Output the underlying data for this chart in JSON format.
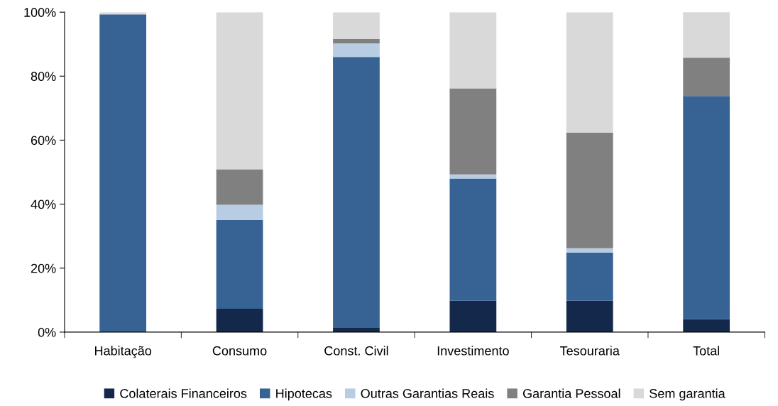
{
  "chart_data": {
    "type": "bar",
    "stacked": true,
    "categories": [
      "Habitação",
      "Consumo",
      "Const. Civil",
      "Investimento",
      "Tesouraria",
      "Total"
    ],
    "series": [
      {
        "name": "Colaterais Financeiros",
        "color": "#13284a",
        "values": [
          0,
          7.3,
          1.3,
          9.8,
          9.8,
          4.0
        ]
      },
      {
        "name": "Hipotecas",
        "color": "#366294",
        "values": [
          99.3,
          27.8,
          84.7,
          38.2,
          15.1,
          69.8
        ]
      },
      {
        "name": "Outras Garantias Reais",
        "color": "#b8cce4",
        "values": [
          0,
          4.7,
          4.2,
          1.3,
          1.3,
          null
        ]
      },
      {
        "name": "Garantia Pessoal",
        "color": "#808080",
        "values": [
          0,
          11.1,
          1.4,
          26.9,
          36.2,
          12.0
        ]
      },
      {
        "name": "Sem garantia",
        "color": "#d9d9d9",
        "values": [
          0.7,
          49.1,
          8.4,
          23.8,
          37.6,
          14.4
        ]
      }
    ],
    "ylim": [
      0,
      100
    ],
    "yticks": [
      {
        "value": 0,
        "label": "0%"
      },
      {
        "value": 20,
        "label": "20%"
      },
      {
        "value": 40,
        "label": "40%"
      },
      {
        "value": 60,
        "label": "60%"
      },
      {
        "value": 80,
        "label": "80%"
      },
      {
        "value": 100,
        "label": "100%"
      }
    ],
    "grid": false,
    "legend": "bottom"
  }
}
